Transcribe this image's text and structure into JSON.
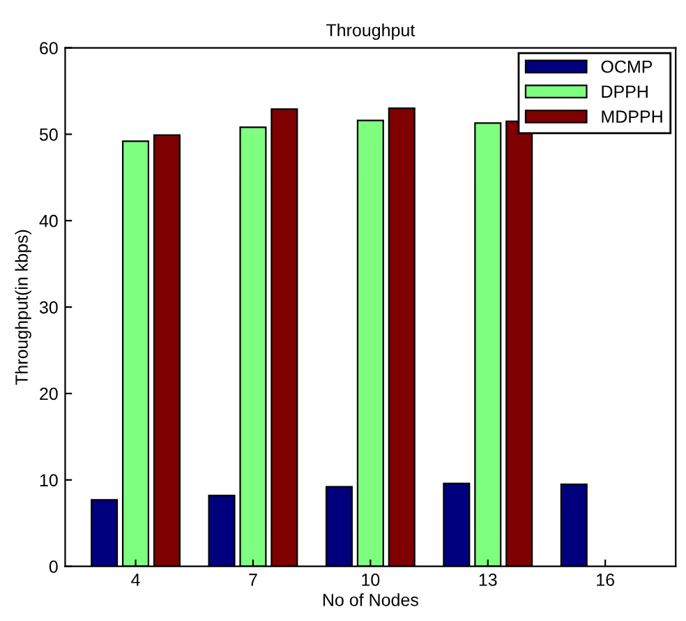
{
  "chart_data": {
    "type": "bar",
    "title": "Throughput",
    "xlabel": "No of Nodes",
    "ylabel": "Throughput(in kbps)",
    "categories": [
      "4",
      "7",
      "10",
      "13",
      "16"
    ],
    "series": [
      {
        "name": "OCMP",
        "color": "#00007f",
        "values": [
          7.7,
          8.2,
          9.2,
          9.6,
          9.5
        ]
      },
      {
        "name": "DPPH",
        "color": "#7fff7f",
        "values": [
          49.2,
          50.8,
          51.6,
          51.3,
          null
        ]
      },
      {
        "name": "MDPPH",
        "color": "#7f0000",
        "values": [
          49.9,
          52.9,
          53.0,
          51.5,
          null
        ]
      }
    ],
    "ylim": [
      0,
      60
    ],
    "yticks": [
      0,
      10,
      20,
      30,
      40,
      50,
      60
    ],
    "grid": false,
    "legend": "top right"
  }
}
